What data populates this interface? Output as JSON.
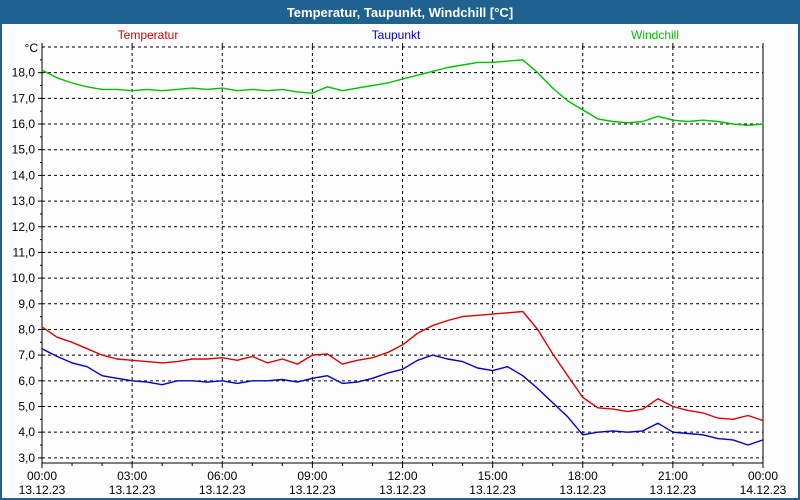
{
  "window": {
    "title": "Temperatur, Taupunkt, Windchill [°C]",
    "titlebar_bg": "#1f618f",
    "border_color": "#1f618f"
  },
  "legend": {
    "items": [
      {
        "label": "Temperatur",
        "color": "#dd0000"
      },
      {
        "label": "Taupunkt",
        "color": "#0000cc"
      },
      {
        "label": "Windchill",
        "color": "#00c000"
      }
    ]
  },
  "chart_data": {
    "type": "line",
    "title": "Temperatur, Taupunkt, Windchill [°C]",
    "y_unit": "°C",
    "ylim": [
      2.8,
      19.0
    ],
    "grid": true,
    "legend_position": "top",
    "x_start_hour": 0,
    "x_step_hours": 0.5,
    "x_total_hours": 24,
    "x_ticks": [
      {
        "time": "00:00",
        "date": "13.12.23"
      },
      {
        "time": "03:00",
        "date": "13.12.23"
      },
      {
        "time": "06:00",
        "date": "13.12.23"
      },
      {
        "time": "09:00",
        "date": "13.12.23"
      },
      {
        "time": "12:00",
        "date": "13.12.23"
      },
      {
        "time": "15:00",
        "date": "13.12.23"
      },
      {
        "time": "18:00",
        "date": "13.12.23"
      },
      {
        "time": "21:00",
        "date": "13.12.23"
      },
      {
        "time": "00:00",
        "date": "14.12.23"
      }
    ],
    "y_ticks": [
      3,
      4,
      5,
      6,
      7,
      8,
      9,
      10,
      11,
      12,
      13,
      14,
      15,
      16,
      17,
      18
    ],
    "y_tick_labels": [
      "3,0",
      "4,0",
      "5,0",
      "6,0",
      "7,0",
      "8,0",
      "9,0",
      "10,0",
      "11,0",
      "12,0",
      "13,0",
      "14,0",
      "15,0",
      "16,0",
      "17,0",
      "18,0"
    ],
    "series": [
      {
        "name": "Temperatur",
        "color": "#dd0000",
        "values": [
          8.1,
          7.7,
          7.5,
          7.25,
          7.0,
          6.85,
          6.8,
          6.75,
          6.7,
          6.75,
          6.85,
          6.85,
          6.9,
          6.8,
          6.95,
          6.7,
          6.85,
          6.65,
          7.0,
          7.05,
          6.65,
          6.8,
          6.9,
          7.1,
          7.4,
          7.85,
          8.15,
          8.35,
          8.5,
          8.55,
          8.6,
          8.65,
          8.7,
          8.0,
          7.05,
          6.2,
          5.35,
          4.95,
          4.9,
          4.8,
          4.9,
          5.3,
          5.0,
          4.85,
          4.75,
          4.55,
          4.5,
          4.65,
          4.45
        ]
      },
      {
        "name": "Taupunkt",
        "color": "#0000cc",
        "values": [
          7.25,
          6.95,
          6.7,
          6.55,
          6.2,
          6.1,
          6.0,
          5.95,
          5.85,
          6.0,
          6.0,
          5.95,
          6.0,
          5.9,
          6.0,
          6.0,
          6.05,
          5.95,
          6.1,
          6.2,
          5.9,
          5.95,
          6.1,
          6.3,
          6.45,
          6.8,
          7.0,
          6.85,
          6.75,
          6.5,
          6.4,
          6.55,
          6.2,
          5.7,
          5.15,
          4.6,
          3.9,
          4.0,
          4.05,
          4.0,
          4.05,
          4.35,
          4.0,
          3.95,
          3.9,
          3.75,
          3.7,
          3.5,
          3.7
        ]
      },
      {
        "name": "Windchill",
        "color": "#00c000",
        "values": [
          18.1,
          17.8,
          17.6,
          17.45,
          17.35,
          17.35,
          17.3,
          17.35,
          17.3,
          17.35,
          17.4,
          17.35,
          17.4,
          17.3,
          17.35,
          17.3,
          17.35,
          17.25,
          17.2,
          17.45,
          17.3,
          17.4,
          17.5,
          17.6,
          17.75,
          17.9,
          18.05,
          18.2,
          18.3,
          18.4,
          18.4,
          18.45,
          18.5,
          18.0,
          17.4,
          16.9,
          16.55,
          16.2,
          16.1,
          16.05,
          16.1,
          16.3,
          16.15,
          16.1,
          16.15,
          16.1,
          16.0,
          15.95,
          16.0
        ]
      }
    ]
  }
}
